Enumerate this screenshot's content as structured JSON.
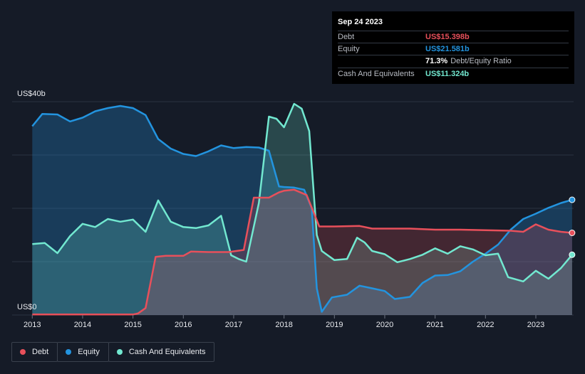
{
  "tooltip": {
    "date": "Sep 24 2023",
    "rows": [
      {
        "label": "Debt",
        "value": "US$15.398b",
        "color": "#e8505b"
      },
      {
        "label": "Equity",
        "value": "US$21.581b",
        "color": "#2394df"
      },
      {
        "label": "Cash And Equivalents",
        "value": "US$11.324b",
        "color": "#72e8d0"
      }
    ],
    "ratio_value": "71.3%",
    "ratio_label": "Debt/Equity Ratio"
  },
  "legend": [
    {
      "label": "Debt",
      "color": "#e8505b"
    },
    {
      "label": "Equity",
      "color": "#2394df"
    },
    {
      "label": "Cash And Equivalents",
      "color": "#72e8d0"
    }
  ],
  "chart_data": {
    "type": "area",
    "x_unit": "year",
    "xlim": [
      2012.6,
      2023.75
    ],
    "ylim": [
      0,
      40
    ],
    "y_top_label": "US$40b",
    "y_bottom_label": "US$0",
    "x_ticks": [
      "2013",
      "2014",
      "2015",
      "2016",
      "2017",
      "2018",
      "2019",
      "2020",
      "2021",
      "2022",
      "2023"
    ],
    "grid": true,
    "series": [
      {
        "name": "Equity",
        "color": "#2394df",
        "points": [
          [
            2013.0,
            35.4
          ],
          [
            2013.2,
            37.7
          ],
          [
            2013.5,
            37.6
          ],
          [
            2013.75,
            36.3
          ],
          [
            2014.0,
            37.0
          ],
          [
            2014.25,
            38.2
          ],
          [
            2014.5,
            38.8
          ],
          [
            2014.75,
            39.2
          ],
          [
            2015.0,
            38.8
          ],
          [
            2015.25,
            37.5
          ],
          [
            2015.5,
            33.0
          ],
          [
            2015.75,
            31.2
          ],
          [
            2016.0,
            30.2
          ],
          [
            2016.25,
            29.8
          ],
          [
            2016.5,
            30.7
          ],
          [
            2016.75,
            31.8
          ],
          [
            2017.0,
            31.3
          ],
          [
            2017.25,
            31.5
          ],
          [
            2017.5,
            31.4
          ],
          [
            2017.7,
            30.8
          ],
          [
            2017.9,
            24.1
          ],
          [
            2018.0,
            24.0
          ],
          [
            2018.2,
            23.9
          ],
          [
            2018.4,
            23.5
          ],
          [
            2018.55,
            20.0
          ],
          [
            2018.65,
            5.0
          ],
          [
            2018.75,
            0.6
          ],
          [
            2018.95,
            3.3
          ],
          [
            2019.25,
            3.8
          ],
          [
            2019.5,
            5.5
          ],
          [
            2019.75,
            5.0
          ],
          [
            2020.0,
            4.5
          ],
          [
            2020.2,
            3.0
          ],
          [
            2020.5,
            3.4
          ],
          [
            2020.75,
            6.0
          ],
          [
            2021.0,
            7.4
          ],
          [
            2021.25,
            7.5
          ],
          [
            2021.5,
            8.2
          ],
          [
            2021.75,
            10.0
          ],
          [
            2022.0,
            11.5
          ],
          [
            2022.25,
            13.2
          ],
          [
            2022.5,
            16.0
          ],
          [
            2022.75,
            18.0
          ],
          [
            2023.0,
            19.0
          ],
          [
            2023.25,
            20.1
          ],
          [
            2023.5,
            21.0
          ],
          [
            2023.72,
            21.6
          ]
        ]
      },
      {
        "name": "Cash And Equivalents",
        "color": "#72e8d0",
        "points": [
          [
            2013.0,
            13.3
          ],
          [
            2013.25,
            13.5
          ],
          [
            2013.5,
            11.6
          ],
          [
            2013.75,
            14.8
          ],
          [
            2014.0,
            17.1
          ],
          [
            2014.25,
            16.5
          ],
          [
            2014.5,
            18.0
          ],
          [
            2014.75,
            17.5
          ],
          [
            2015.0,
            17.9
          ],
          [
            2015.25,
            15.6
          ],
          [
            2015.5,
            21.5
          ],
          [
            2015.75,
            17.5
          ],
          [
            2016.0,
            16.5
          ],
          [
            2016.25,
            16.3
          ],
          [
            2016.5,
            16.8
          ],
          [
            2016.75,
            18.6
          ],
          [
            2016.95,
            11.2
          ],
          [
            2017.1,
            10.5
          ],
          [
            2017.25,
            10.0
          ],
          [
            2017.5,
            21.0
          ],
          [
            2017.7,
            37.2
          ],
          [
            2017.85,
            36.8
          ],
          [
            2018.0,
            35.2
          ],
          [
            2018.2,
            39.6
          ],
          [
            2018.35,
            38.7
          ],
          [
            2018.5,
            34.5
          ],
          [
            2018.65,
            15.0
          ],
          [
            2018.75,
            12.0
          ],
          [
            2019.0,
            10.3
          ],
          [
            2019.25,
            10.5
          ],
          [
            2019.45,
            14.5
          ],
          [
            2019.6,
            13.6
          ],
          [
            2019.75,
            12.0
          ],
          [
            2020.0,
            11.4
          ],
          [
            2020.25,
            9.9
          ],
          [
            2020.5,
            10.5
          ],
          [
            2020.75,
            11.3
          ],
          [
            2021.0,
            12.5
          ],
          [
            2021.25,
            11.5
          ],
          [
            2021.5,
            12.9
          ],
          [
            2021.75,
            12.3
          ],
          [
            2022.0,
            11.2
          ],
          [
            2022.25,
            11.5
          ],
          [
            2022.45,
            7.1
          ],
          [
            2022.75,
            6.3
          ],
          [
            2023.0,
            8.3
          ],
          [
            2023.25,
            6.8
          ],
          [
            2023.5,
            8.8
          ],
          [
            2023.72,
            11.3
          ]
        ]
      },
      {
        "name": "Debt",
        "color": "#e8505b",
        "points": [
          [
            2013.0,
            0.1
          ],
          [
            2014.0,
            0.1
          ],
          [
            2015.0,
            0.1
          ],
          [
            2015.1,
            0.3
          ],
          [
            2015.25,
            1.3
          ],
          [
            2015.45,
            10.9
          ],
          [
            2015.65,
            11.1
          ],
          [
            2016.0,
            11.1
          ],
          [
            2016.15,
            11.9
          ],
          [
            2016.5,
            11.8
          ],
          [
            2016.9,
            11.8
          ],
          [
            2017.2,
            12.2
          ],
          [
            2017.4,
            22.0
          ],
          [
            2017.7,
            22.0
          ],
          [
            2017.9,
            23.0
          ],
          [
            2018.0,
            23.3
          ],
          [
            2018.2,
            23.5
          ],
          [
            2018.45,
            22.5
          ],
          [
            2018.7,
            16.6
          ],
          [
            2019.0,
            16.6
          ],
          [
            2019.5,
            16.7
          ],
          [
            2019.75,
            16.2
          ],
          [
            2020.0,
            16.2
          ],
          [
            2020.5,
            16.2
          ],
          [
            2021.0,
            16.0
          ],
          [
            2021.5,
            16.0
          ],
          [
            2022.0,
            15.9
          ],
          [
            2022.5,
            15.8
          ],
          [
            2022.75,
            15.6
          ],
          [
            2023.0,
            17.0
          ],
          [
            2023.25,
            16.0
          ],
          [
            2023.5,
            15.6
          ],
          [
            2023.72,
            15.4
          ]
        ]
      }
    ]
  }
}
